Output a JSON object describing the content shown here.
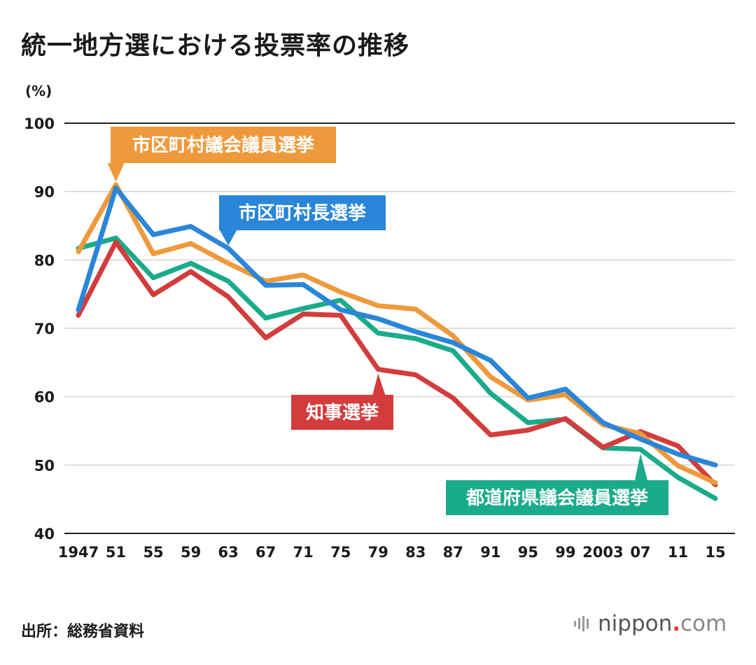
{
  "title": "統一地方選における投票率の推移",
  "source": "出所：総務省資料",
  "brand": {
    "name": "nippon",
    "dot": ".",
    "suffix": "com"
  },
  "chart_data": {
    "type": "line",
    "unit_label": "(%)",
    "categories": [
      "1947",
      "51",
      "55",
      "59",
      "63",
      "67",
      "71",
      "75",
      "79",
      "83",
      "87",
      "91",
      "95",
      "99",
      "2003",
      "07",
      "11",
      "15"
    ],
    "ylim": [
      40,
      100
    ],
    "yticks": [
      40,
      50,
      60,
      70,
      80,
      90,
      100
    ],
    "grid": true,
    "series": [
      {
        "name": "都道府県議会議員選挙",
        "color": "#1aab8a",
        "values": [
          81.7,
          83.2,
          77.4,
          79.5,
          76.9,
          71.5,
          72.9,
          74.1,
          69.3,
          68.5,
          66.7,
          60.5,
          56.2,
          56.7,
          52.5,
          52.3,
          48.2,
          45.1
        ]
      },
      {
        "name": "知事選挙",
        "color": "#d33c3c",
        "values": [
          71.9,
          82.6,
          74.9,
          78.3,
          74.6,
          68.6,
          72.1,
          71.9,
          64.0,
          63.2,
          59.8,
          54.4,
          55.1,
          56.8,
          52.6,
          54.9,
          52.8,
          47.1
        ]
      },
      {
        "name": "市区町村議会議員選挙",
        "color": "#ee9a3c",
        "values": [
          81.2,
          91.0,
          80.9,
          82.4,
          79.5,
          76.9,
          77.8,
          75.3,
          73.3,
          72.8,
          68.9,
          62.9,
          59.5,
          60.3,
          55.9,
          54.6,
          49.9,
          47.4
        ]
      },
      {
        "name": "市区町村長選挙",
        "color": "#2a86d8",
        "values": [
          72.7,
          90.5,
          83.7,
          84.9,
          81.7,
          76.3,
          76.4,
          72.7,
          71.4,
          69.5,
          67.9,
          65.3,
          59.8,
          61.1,
          56.2,
          53.8,
          51.6,
          50.0
        ]
      }
    ]
  }
}
